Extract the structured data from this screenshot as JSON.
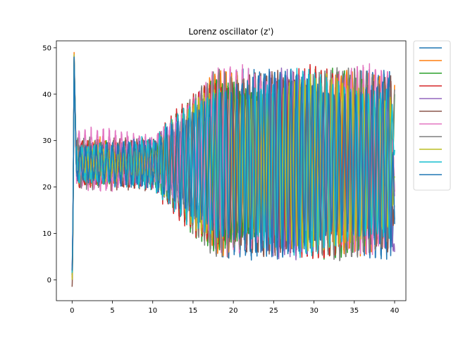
{
  "chart_data": {
    "type": "line",
    "title": "Lorenz oscillator (z')",
    "xlabel": "",
    "ylabel": "",
    "xlim": [
      -1.95,
      41.4
    ],
    "ylim": [
      -4.5,
      51.5
    ],
    "x_ticks": [
      0,
      5,
      10,
      15,
      20,
      25,
      30,
      35,
      40
    ],
    "y_ticks": [
      0,
      10,
      20,
      30,
      40,
      50
    ],
    "grid": false,
    "legend": {
      "placement": "outside-right-top",
      "entries_with_text": false
    },
    "x_range": [
      0,
      40
    ],
    "series": [
      {
        "color": "#1f77b4",
        "init_z": 3.0,
        "peak_z": 47.0,
        "center_z": 25.0,
        "period": 0.7,
        "amp_start": 3.0,
        "amp_end": 17.0,
        "final_z": 12.0,
        "phase": 0.0
      },
      {
        "color": "#ff7f0e",
        "init_z": 0.5,
        "peak_z": 49.0,
        "center_z": 25.5,
        "period": 0.68,
        "amp_start": 3.5,
        "amp_end": 16.5,
        "final_z": 42.0,
        "phase": 1.1
      },
      {
        "color": "#2ca02c",
        "init_z": 1.0,
        "peak_z": 48.0,
        "center_z": 25.0,
        "period": 0.72,
        "amp_start": 4.0,
        "amp_end": 17.0,
        "final_z": 40.0,
        "phase": 2.3
      },
      {
        "color": "#d62728",
        "init_z": 2.0,
        "peak_z": 47.5,
        "center_z": 25.0,
        "period": 0.69,
        "amp_start": 4.5,
        "amp_end": 17.5,
        "final_z": 19.0,
        "phase": 3.0
      },
      {
        "color": "#9467bd",
        "init_z": 1.5,
        "peak_z": 48.5,
        "center_z": 25.0,
        "period": 0.71,
        "amp_start": 3.5,
        "amp_end": 17.0,
        "final_z": 6.0,
        "phase": 4.2
      },
      {
        "color": "#8c564b",
        "init_z": -1.5,
        "peak_z": 48.0,
        "center_z": 25.0,
        "period": 0.7,
        "amp_start": 4.0,
        "amp_end": 16.5,
        "final_z": 16.0,
        "phase": 5.1
      },
      {
        "color": "#e377c2",
        "init_z": 2.5,
        "peak_z": 46.0,
        "center_z": 26.0,
        "period": 0.75,
        "amp_start": 5.0,
        "amp_end": 17.0,
        "final_z": 18.0,
        "phase": 0.6
      },
      {
        "color": "#7f7f7f",
        "init_z": 1.0,
        "peak_z": 47.0,
        "center_z": 25.0,
        "period": 0.73,
        "amp_start": 4.0,
        "amp_end": 17.5,
        "final_z": 41.0,
        "phase": 1.7
      },
      {
        "color": "#bcbd22",
        "init_z": 0.0,
        "peak_z": 48.5,
        "center_z": 25.0,
        "period": 0.66,
        "amp_start": 3.0,
        "amp_end": 16.0,
        "final_z": 22.0,
        "phase": 2.8
      },
      {
        "color": "#17becf",
        "init_z": 1.5,
        "peak_z": 47.5,
        "center_z": 25.0,
        "period": 0.74,
        "amp_start": 4.0,
        "amp_end": 17.0,
        "final_z": 28.0,
        "phase": 3.6
      },
      {
        "color": "#1f77b4",
        "init_z": 2.0,
        "peak_z": 48.0,
        "center_z": 25.0,
        "period": 0.67,
        "amp_start": 3.5,
        "amp_end": 17.0,
        "final_z": 13.0,
        "phase": 4.8
      }
    ]
  }
}
